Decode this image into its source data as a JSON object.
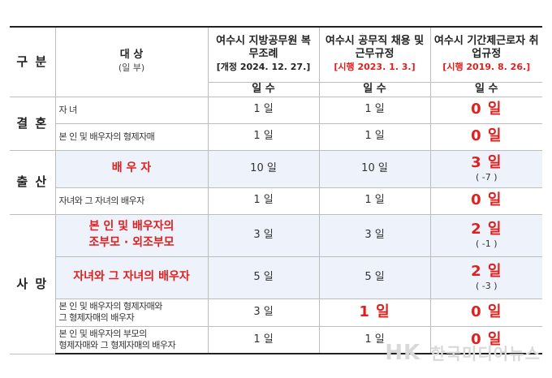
{
  "headers": {
    "category": "구 분",
    "target": "대 상",
    "target_unit": "(일 부)",
    "col1_name": "여수시 지방공무원 복무조례",
    "col1_history": "[개정 2024. 12. 27.]",
    "col2_name": "여수시 공무직 채용 및 근무규정",
    "col2_history": "[시행 2023. 1. 3.]",
    "col3_name": "여수시 기간제근로자 취업규정",
    "col3_history": "[시행 2019. 8. 26.]",
    "days": "일 수"
  },
  "groups": {
    "marriage": "결 혼",
    "birth": "출 산",
    "death": "사 망"
  },
  "rows": [
    {
      "target": "자 녀",
      "v1": "1 일",
      "v2": "1 일",
      "v3": "0 일",
      "v3_diff": ""
    },
    {
      "target": "본 인 및 배우자의 형제자매",
      "v1": "1 일",
      "v2": "1 일",
      "v3": "0 일",
      "v3_diff": ""
    },
    {
      "target": "배 우 자",
      "v1": "10 일",
      "v2": "10 일",
      "v3": "3 일",
      "v3_diff": "( -7 )"
    },
    {
      "target": "자녀와 그 자녀의 배우자",
      "v1": "1 일",
      "v2": "1 일",
      "v3": "0 일",
      "v3_diff": ""
    },
    {
      "target_line1": "본 인 및 배우자의",
      "target_line2": "조부모 · 외조부모",
      "v1": "3 일",
      "v2": "3 일",
      "v3": "2 일",
      "v3_diff": "( -1 )"
    },
    {
      "target": "자녀와 그 자녀의 배우자",
      "v1": "5 일",
      "v2": "5 일",
      "v3": "2 일",
      "v3_diff": "( -3 )"
    },
    {
      "target_line1": "본 인 및 배우자의 형제자매와",
      "target_line2": "그 형제자매의 배우자",
      "v1": "3 일",
      "v2": "1 일",
      "v3": "0 일",
      "v3_diff": ""
    },
    {
      "target_line1": "본 인 및 배우자의 부모의",
      "target_line2": "형제자매와 그 형제자매의 배우자",
      "v1": "1 일",
      "v2": "1 일",
      "v3": "0 일",
      "v3_diff": ""
    }
  ],
  "watermark": "한국미디어뉴스",
  "watermark_logo": "HK"
}
